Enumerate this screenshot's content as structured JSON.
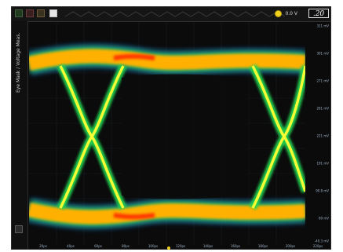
{
  "toolbar": {
    "icons": [
      "green-square-icon",
      "red-square-icon",
      "brown-square-icon",
      "display-icon"
    ],
    "measurement": "0.0 V",
    "corner_label": ".20"
  },
  "sidebar": {
    "label": "Eye Mask / Voltage Meas."
  },
  "axes": {
    "y_ticks": [
      "311 mV",
      "301 mV",
      "271 mV",
      "261 mV",
      "221 mV",
      "191 mV",
      "90.8 mV",
      "69 mV",
      "-40.3 mV"
    ],
    "x_ticks": [
      "20ps",
      "40ps",
      "60ps",
      "80ps",
      "100ps",
      "120ps",
      "140ps",
      "160ps",
      "180ps",
      "200ps",
      "220ps"
    ]
  },
  "colors": {
    "background": "#0b0b0b",
    "trace_core": "#ff2a00",
    "trace_mid": "#ffb000",
    "trace_edge": "#ffff33",
    "trace_outer": "#22d24f",
    "accent": "#f2d21b"
  }
}
